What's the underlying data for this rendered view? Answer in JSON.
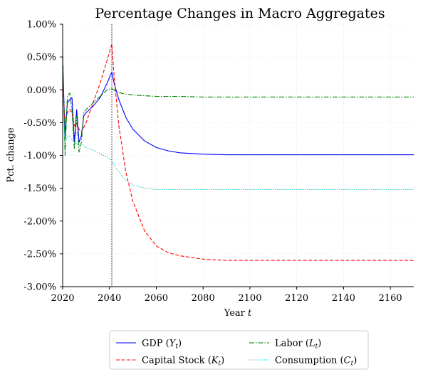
{
  "chart_data": {
    "type": "line",
    "title": "Percentage Changes in Macro Aggregates",
    "xlabel": "Year",
    "xlabel_var": "t",
    "ylabel": "Pct. change",
    "xlim": [
      2020,
      2170
    ],
    "ylim": [
      -3.0,
      1.0
    ],
    "x_ticks": [
      2020,
      2040,
      2060,
      2080,
      2100,
      2120,
      2140,
      2160
    ],
    "y_ticks": [
      -3.0,
      -2.5,
      -2.0,
      -1.5,
      -1.0,
      -0.5,
      0.0,
      0.5,
      1.0
    ],
    "y_tick_labels": [
      "-3.00%",
      "-2.50%",
      "-2.00%",
      "-1.50%",
      "-1.00%",
      "-0.50%",
      "0.00%",
      "0.50%",
      "1.00%"
    ],
    "grid": true,
    "reference_line_x": 2041,
    "legend_position": "bottom-center",
    "colors": {
      "gdp": "#0000ff",
      "capital": "#ff0000",
      "labor": "#008000",
      "consumption": "#00bfbf"
    },
    "series": [
      {
        "name": "GDP",
        "symbol": "Y",
        "key": "gdp",
        "dash": "solid",
        "x": [
          2020,
          2021,
          2022,
          2023,
          2024,
          2025,
          2026,
          2027,
          2028,
          2029,
          2030,
          2033,
          2036,
          2039,
          2041,
          2042,
          2044,
          2047,
          2050,
          2055,
          2060,
          2065,
          2070,
          2080,
          2090,
          2100,
          2110,
          2120,
          2140,
          2160,
          2170
        ],
        "values": [
          0.45,
          -0.7,
          -0.2,
          -0.15,
          -0.12,
          -0.8,
          -0.3,
          -0.8,
          -0.7,
          -0.4,
          -0.35,
          -0.25,
          -0.12,
          0.1,
          0.27,
          0.1,
          -0.15,
          -0.42,
          -0.6,
          -0.78,
          -0.88,
          -0.93,
          -0.96,
          -0.98,
          -0.99,
          -0.99,
          -0.99,
          -0.99,
          -0.99,
          -0.99,
          -0.99
        ]
      },
      {
        "name": "Capital Stock",
        "symbol": "K",
        "key": "capital",
        "dash": "dashed",
        "x": [
          2020,
          2021,
          2022,
          2023,
          2024,
          2025,
          2026,
          2027,
          2028,
          2030,
          2033,
          2036,
          2039,
          2041,
          2042,
          2044,
          2047,
          2050,
          2055,
          2060,
          2065,
          2070,
          2080,
          2090,
          2100,
          2120,
          2140,
          2160,
          2170
        ],
        "values": [
          0.1,
          -0.5,
          -0.35,
          -0.3,
          -0.35,
          -0.55,
          -0.5,
          -0.6,
          -0.65,
          -0.5,
          -0.2,
          0.1,
          0.45,
          0.7,
          0.2,
          -0.55,
          -1.25,
          -1.7,
          -2.15,
          -2.38,
          -2.48,
          -2.53,
          -2.58,
          -2.6,
          -2.6,
          -2.6,
          -2.6,
          -2.6,
          -2.6
        ]
      },
      {
        "name": "Labor",
        "symbol": "L",
        "key": "labor",
        "dash": "dashdot",
        "x": [
          2020,
          2021,
          2022,
          2023,
          2024,
          2025,
          2026,
          2027,
          2028,
          2029,
          2030,
          2033,
          2036,
          2039,
          2041,
          2043,
          2046,
          2050,
          2055,
          2060,
          2070,
          2080,
          2100,
          2120,
          2140,
          2160,
          2170
        ],
        "values": [
          0.65,
          -1.0,
          -0.1,
          -0.05,
          -0.3,
          -0.9,
          -0.4,
          -0.95,
          -0.8,
          -0.35,
          -0.3,
          -0.2,
          -0.1,
          0.0,
          0.02,
          -0.03,
          -0.06,
          -0.08,
          -0.09,
          -0.1,
          -0.1,
          -0.11,
          -0.11,
          -0.11,
          -0.11,
          -0.11,
          -0.11
        ]
      },
      {
        "name": "Consumption",
        "symbol": "C",
        "key": "consumption",
        "dash": "dotted",
        "x": [
          2020,
          2021,
          2022,
          2023,
          2024,
          2025,
          2026,
          2027,
          2028,
          2030,
          2033,
          2036,
          2039,
          2041,
          2043,
          2046,
          2050,
          2055,
          2060,
          2070,
          2080,
          2100,
          2120,
          2140,
          2160,
          2170
        ],
        "values": [
          -0.1,
          -0.8,
          -0.72,
          -0.7,
          -0.75,
          -0.8,
          -0.82,
          -0.85,
          -0.82,
          -0.88,
          -0.92,
          -0.98,
          -1.02,
          -1.08,
          -1.2,
          -1.35,
          -1.45,
          -1.5,
          -1.52,
          -1.52,
          -1.52,
          -1.52,
          -1.52,
          -1.52,
          -1.52,
          -1.52
        ]
      }
    ]
  }
}
